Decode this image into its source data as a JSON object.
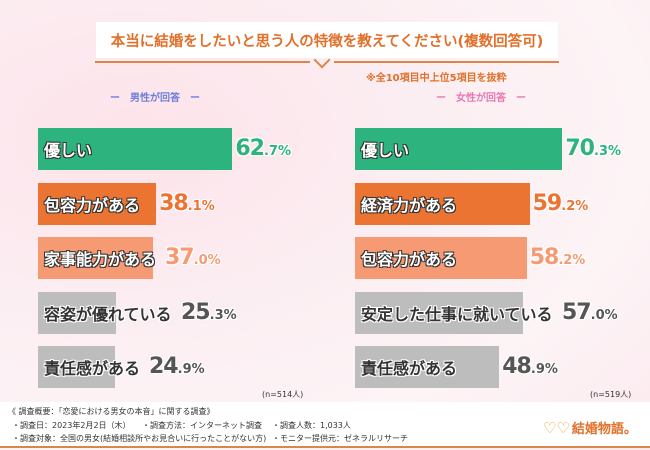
{
  "title": "本当に結婚をしたいと思う人の特徴を教えてください(複数回答可)",
  "note": "※全10項目中上位5項目を抜粋",
  "chart_data": [
    {
      "type": "bar",
      "orientation": "horizontal",
      "subtitle": "ー　男性が回答　ー",
      "sample": "(n=514人)",
      "unit": "%",
      "categories": [
        "優しい",
        "包容力がある",
        "家事能力がある",
        "容姿が優れている",
        "責任感がある"
      ],
      "values": [
        62.7,
        38.1,
        37.0,
        25.3,
        24.9
      ],
      "colors": [
        "#2db37e",
        "#ec7432",
        "#f59a72",
        "#bdbdbd",
        "#bdbdbd"
      ]
    },
    {
      "type": "bar",
      "orientation": "horizontal",
      "subtitle": "ー　女性が回答　ー",
      "sample": "(n=519人)",
      "unit": "%",
      "categories": [
        "優しい",
        "経済力がある",
        "包容力がある",
        "安定した仕事に就いている",
        "責任感がある"
      ],
      "values": [
        70.3,
        59.2,
        58.2,
        57.0,
        48.9
      ],
      "colors": [
        "#2db37e",
        "#ec7432",
        "#f59a72",
        "#bdbdbd",
        "#bdbdbd"
      ]
    }
  ],
  "footer": {
    "heading": "《 調査概要：「恋愛における男女の本音」に関する調査》",
    "date": "・調査日：2023年2月2日（木）",
    "method": "・調査方法：インターネット調査",
    "count": "・調査人数：1,033人",
    "target": "・調査対象：全国の男女(結婚相談所やお見合いに行ったことがない方)",
    "provider": "・モニター提供元：ゼネラルリサーチ"
  },
  "logo": "結婚物語。"
}
